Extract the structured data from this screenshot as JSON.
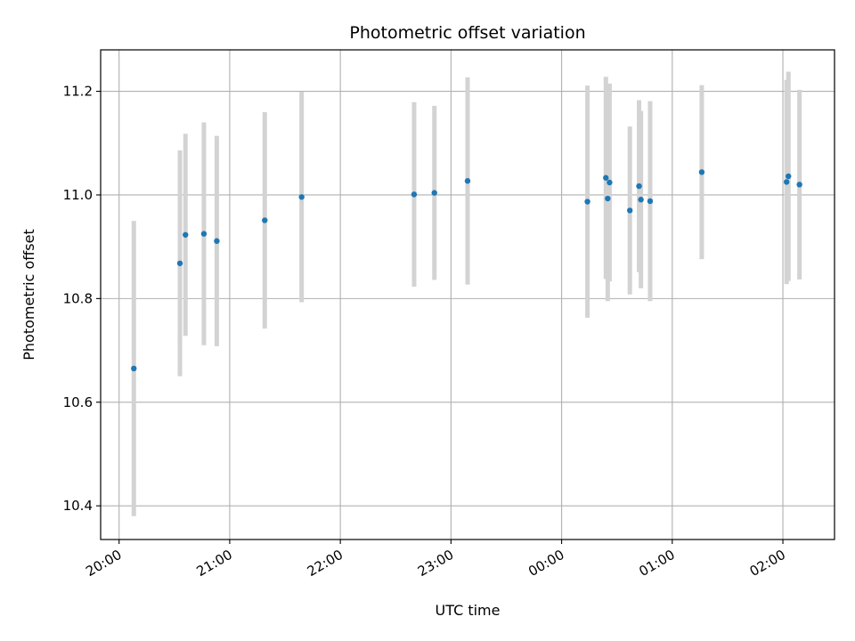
{
  "chart_data": {
    "type": "scatter",
    "title": "Photometric offset variation",
    "xlabel": "UTC time",
    "ylabel": "Photometric offset",
    "grid": true,
    "x_axis": {
      "unit": "UTC time",
      "range": [
        "19:50",
        "02:28"
      ],
      "ticks": [
        "20:00",
        "21:00",
        "22:00",
        "23:00",
        "00:00",
        "01:00",
        "02:00"
      ]
    },
    "y_axis": {
      "range": [
        10.335,
        11.28
      ],
      "ticks": [
        "10.4",
        "10.6",
        "10.8",
        "11.0",
        "11.2"
      ]
    },
    "colors": {
      "points": "#1f77b4",
      "errorbars": "#d3d3d3",
      "grid": "#b0b0b0"
    },
    "series": [
      {
        "points": [
          {
            "x": "20:08",
            "y": 10.665,
            "err": 0.285
          },
          {
            "x": "20:33",
            "y": 10.868,
            "err": 0.218
          },
          {
            "x": "20:36",
            "y": 10.923,
            "err": 0.195
          },
          {
            "x": "20:46",
            "y": 10.925,
            "err": 0.215
          },
          {
            "x": "20:53",
            "y": 10.911,
            "err": 0.203
          },
          {
            "x": "21:19",
            "y": 10.951,
            "err": 0.209
          },
          {
            "x": "21:39",
            "y": 10.996,
            "err": 0.203
          },
          {
            "x": "22:40",
            "y": 11.001,
            "err": 0.178
          },
          {
            "x": "22:51",
            "y": 11.004,
            "err": 0.168
          },
          {
            "x": "23:09",
            "y": 11.027,
            "err": 0.2
          },
          {
            "x": "00:14",
            "y": 10.987,
            "err": 0.224
          },
          {
            "x": "00:24",
            "y": 11.033,
            "err": 0.195
          },
          {
            "x": "00:25",
            "y": 10.993,
            "err": 0.198
          },
          {
            "x": "00:26",
            "y": 11.024,
            "err": 0.191
          },
          {
            "x": "00:37",
            "y": 10.97,
            "err": 0.162
          },
          {
            "x": "00:42",
            "y": 11.017,
            "err": 0.166
          },
          {
            "x": "00:43",
            "y": 10.991,
            "err": 0.171
          },
          {
            "x": "00:48",
            "y": 10.988,
            "err": 0.193
          },
          {
            "x": "01:16",
            "y": 11.044,
            "err": 0.168
          },
          {
            "x": "02:02",
            "y": 11.025,
            "err": 0.197
          },
          {
            "x": "02:03",
            "y": 11.036,
            "err": 0.202
          },
          {
            "x": "02:09",
            "y": 11.02,
            "err": 0.183
          }
        ]
      }
    ]
  }
}
